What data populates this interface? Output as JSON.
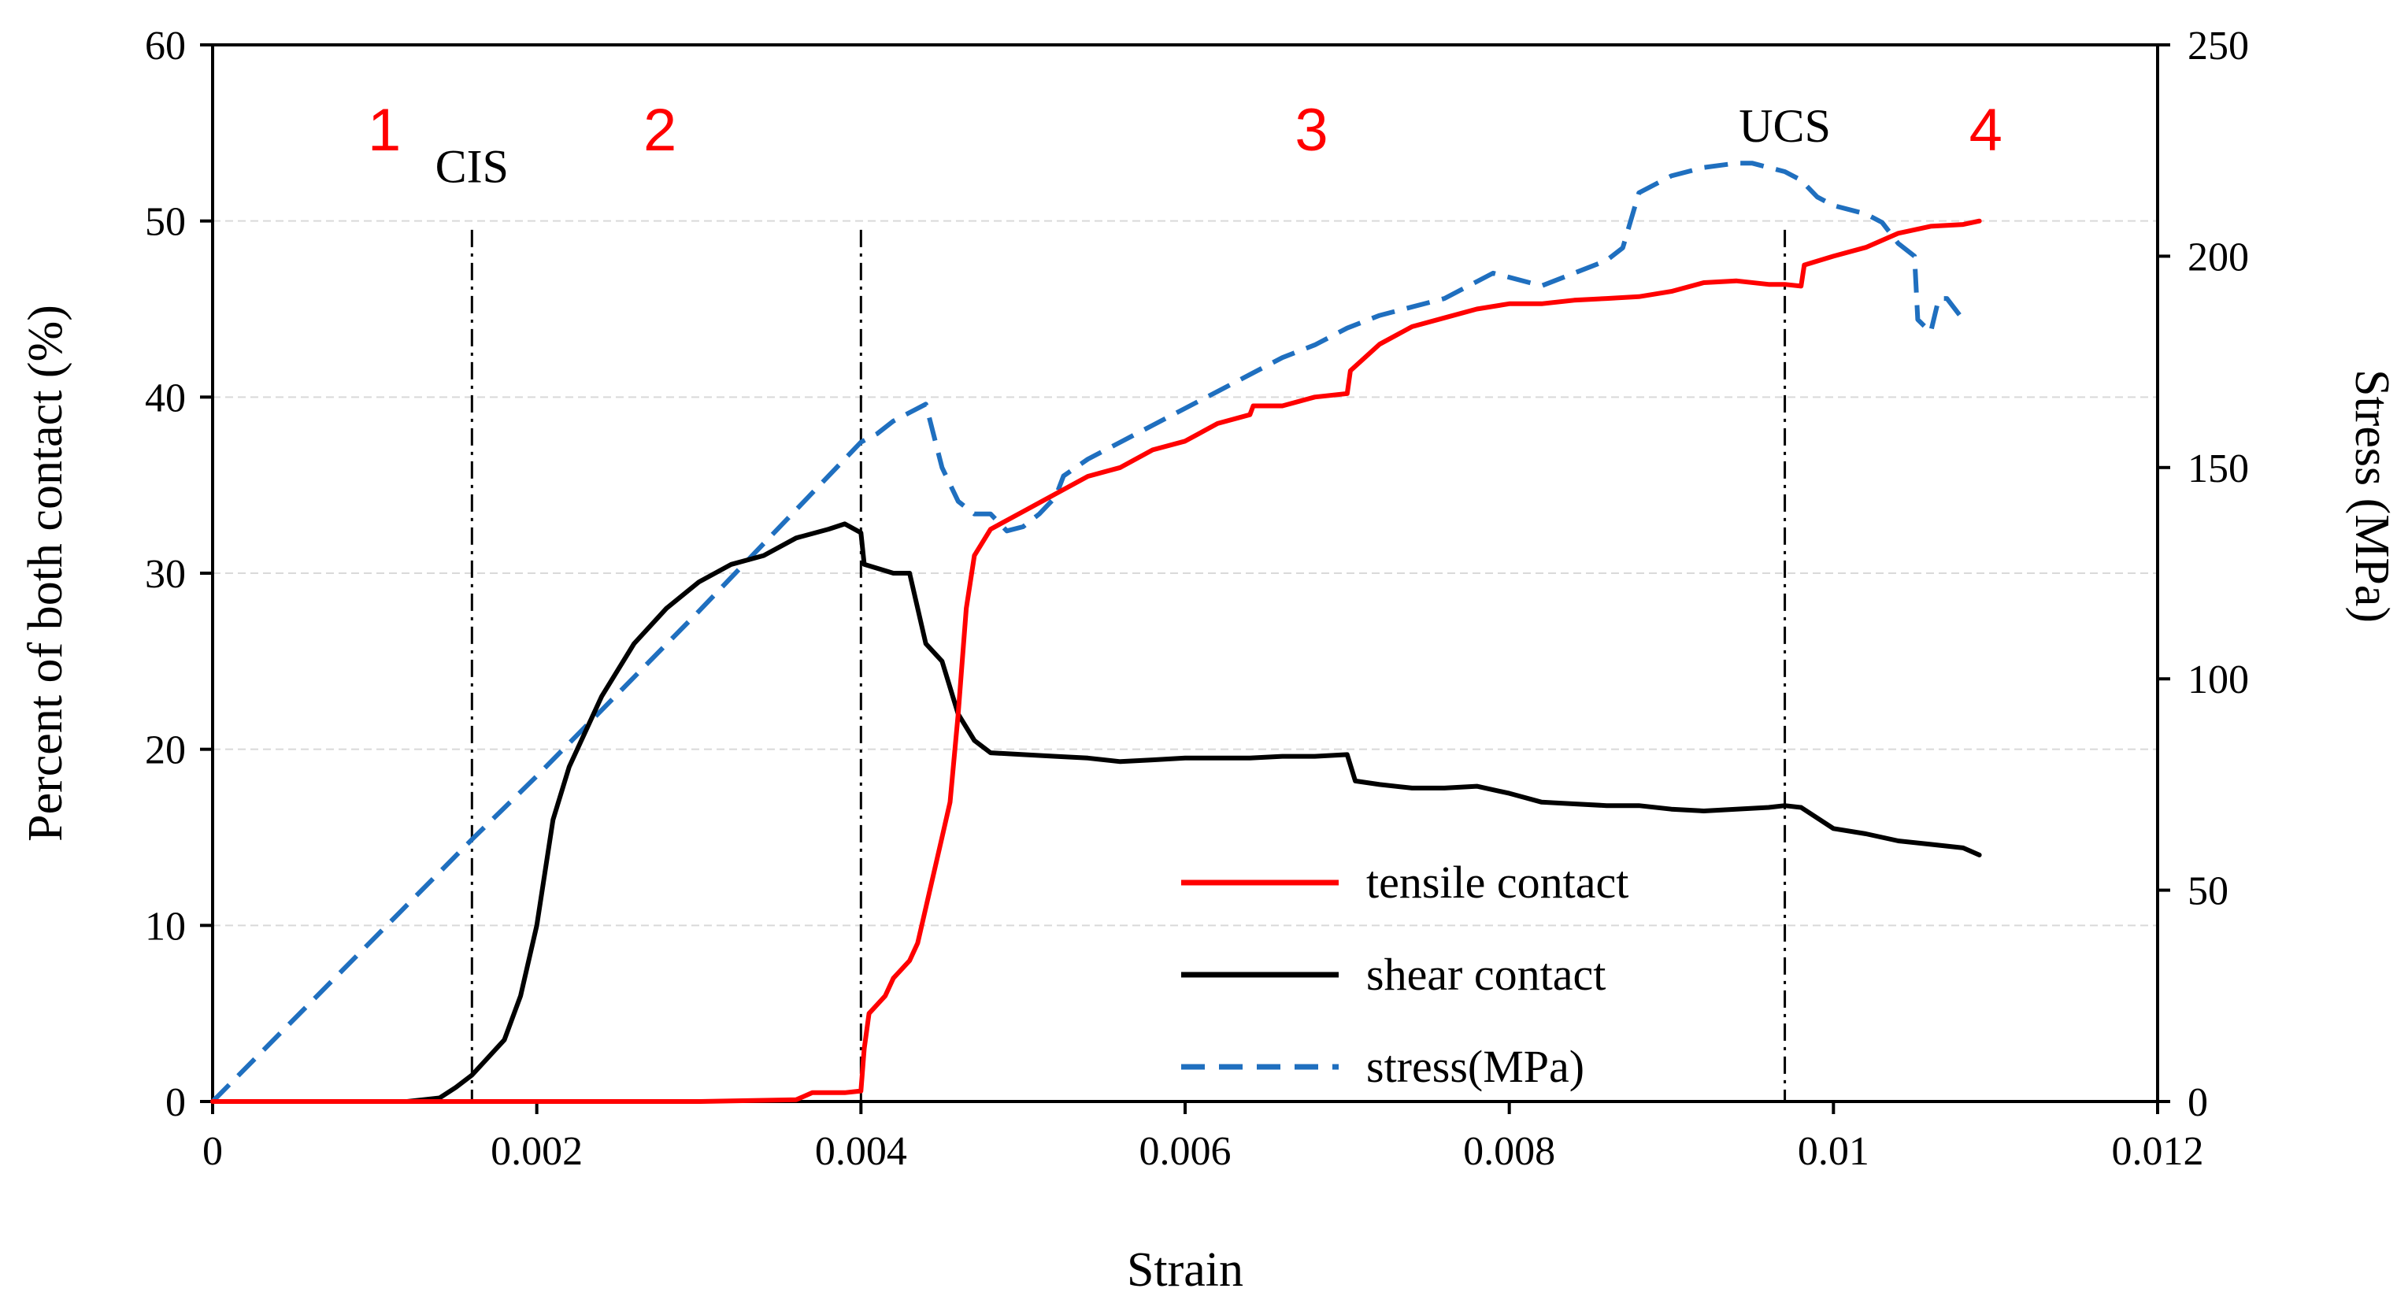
{
  "colors": {
    "tensile": "#ff0000",
    "shear": "#000000",
    "stress": "#1f6fbf",
    "stage": "#ff0000",
    "grid": "#d9d9d9"
  },
  "chart_data": {
    "type": "line",
    "xlabel": "Strain",
    "ylabel_left": "Percent of both contact (%)",
    "ylabel_right": "Stress (MPa)",
    "xlim": [
      0,
      0.012
    ],
    "ylim_left": [
      0,
      60
    ],
    "ylim_right": [
      0,
      250
    ],
    "x_ticks": [
      0,
      0.002,
      0.004,
      0.006,
      0.008,
      0.01,
      0.012
    ],
    "x_tick_labels": [
      "0",
      "0.002",
      "0.004",
      "0.006",
      "0.008",
      "0.01",
      "0.012"
    ],
    "y_left_ticks": [
      0,
      10,
      20,
      30,
      40,
      50,
      60
    ],
    "y_left_tick_labels": [
      "0",
      "10",
      "20",
      "30",
      "40",
      "50",
      "60"
    ],
    "y_right_ticks": [
      0,
      50,
      100,
      150,
      200,
      250
    ],
    "y_right_tick_labels": [
      "0",
      "50",
      "100",
      "150",
      "200",
      "250"
    ],
    "grid": "horizontal",
    "legend_position": "bottom-center",
    "series": [
      {
        "name": "tensile contact",
        "axis": "left",
        "style": "solid",
        "x": [
          0,
          0.001,
          0.002,
          0.003,
          0.0036,
          0.0037,
          0.0039,
          0.004,
          0.00402,
          0.00405,
          0.0041,
          0.00415,
          0.0042,
          0.0043,
          0.00435,
          0.0044,
          0.0045,
          0.00455,
          0.0046,
          0.00465,
          0.0047,
          0.0048,
          0.005,
          0.0052,
          0.0054,
          0.0056,
          0.0058,
          0.006,
          0.0062,
          0.0064,
          0.00642,
          0.0066,
          0.0068,
          0.007,
          0.00702,
          0.0072,
          0.0074,
          0.0076,
          0.0078,
          0.008,
          0.0082,
          0.0084,
          0.0086,
          0.0088,
          0.009,
          0.0092,
          0.0094,
          0.0096,
          0.0097,
          0.0098,
          0.00982,
          0.01,
          0.0102,
          0.0104,
          0.0106,
          0.0108,
          0.0109
        ],
        "values": [
          0,
          0,
          0,
          0,
          0.1,
          0.5,
          0.5,
          0.6,
          3,
          5,
          5.5,
          6,
          7,
          8,
          9,
          11,
          15,
          17,
          22,
          28,
          31,
          32.5,
          33.5,
          34.5,
          35.5,
          36,
          37,
          37.5,
          38.5,
          39,
          39.5,
          39.5,
          40,
          40.2,
          41.5,
          43,
          44,
          44.5,
          45,
          45.3,
          45.3,
          45.5,
          45.6,
          45.7,
          46,
          46.5,
          46.6,
          46.4,
          46.4,
          46.3,
          47.5,
          48,
          48.5,
          49.3,
          49.7,
          49.8,
          50
        ]
      },
      {
        "name": "shear contact",
        "axis": "left",
        "style": "solid",
        "x": [
          0,
          0.0012,
          0.0014,
          0.0015,
          0.0016,
          0.0017,
          0.0018,
          0.0019,
          0.002,
          0.00205,
          0.0021,
          0.0022,
          0.0024,
          0.0026,
          0.0028,
          0.003,
          0.0032,
          0.0034,
          0.0036,
          0.0038,
          0.0039,
          0.004,
          0.00402,
          0.0042,
          0.0043,
          0.0044,
          0.0045,
          0.0046,
          0.0047,
          0.0048,
          0.005,
          0.0052,
          0.0054,
          0.0056,
          0.0058,
          0.006,
          0.0062,
          0.0064,
          0.0066,
          0.0068,
          0.007,
          0.00705,
          0.0072,
          0.0074,
          0.0076,
          0.0078,
          0.008,
          0.0082,
          0.0084,
          0.0086,
          0.0088,
          0.009,
          0.0092,
          0.0094,
          0.0096,
          0.0097,
          0.0098,
          0.01,
          0.0102,
          0.0104,
          0.0106,
          0.0108,
          0.0109
        ],
        "values": [
          0,
          0,
          0.2,
          0.8,
          1.5,
          2.5,
          3.5,
          6,
          10,
          13,
          16,
          19,
          23,
          26,
          28,
          29.5,
          30.5,
          31,
          32,
          32.5,
          32.8,
          32.3,
          30.5,
          30,
          30,
          26,
          25,
          22,
          20.5,
          19.8,
          19.7,
          19.6,
          19.5,
          19.3,
          19.4,
          19.5,
          19.5,
          19.5,
          19.6,
          19.6,
          19.7,
          18.2,
          18,
          17.8,
          17.8,
          17.9,
          17.5,
          17,
          16.9,
          16.8,
          16.8,
          16.6,
          16.5,
          16.6,
          16.7,
          16.8,
          16.7,
          15.5,
          15.2,
          14.8,
          14.6,
          14.4,
          14
        ]
      },
      {
        "name": "stress(MPa)",
        "axis": "right",
        "style": "dashed",
        "x": [
          0,
          0.0016,
          0.002,
          0.003,
          0.004,
          0.0041,
          0.0042,
          0.0043,
          0.0044,
          0.0045,
          0.0046,
          0.0047,
          0.0048,
          0.0049,
          0.005,
          0.0051,
          0.00515,
          0.0052,
          0.00525,
          0.0054,
          0.0056,
          0.0058,
          0.006,
          0.0062,
          0.0064,
          0.0066,
          0.0068,
          0.007,
          0.0072,
          0.0074,
          0.0076,
          0.0078,
          0.0079,
          0.008,
          0.0082,
          0.0084,
          0.0086,
          0.0087,
          0.0088,
          0.00885,
          0.009,
          0.0092,
          0.0094,
          0.0095,
          0.0096,
          0.0097,
          0.0098,
          0.0099,
          0.01,
          0.0102,
          0.0103,
          0.0104,
          0.0105,
          0.01052,
          0.0106,
          0.01065,
          0.0107,
          0.0108
        ],
        "values": [
          0,
          62,
          77,
          116,
          156,
          158,
          161,
          163,
          165,
          150,
          142,
          139,
          139,
          135,
          136,
          139,
          141,
          143,
          148,
          152,
          156,
          160,
          164,
          168,
          172,
          176,
          179,
          183,
          186,
          188,
          190,
          194,
          196,
          195,
          193,
          196,
          199,
          202,
          215,
          216,
          219,
          221,
          222,
          222,
          221,
          220,
          218,
          214,
          212,
          210,
          208,
          203,
          200,
          185,
          182,
          190,
          190,
          185
        ]
      }
    ],
    "markers": [
      {
        "label": "CIS",
        "x": 0.0016
      },
      {
        "label": "",
        "x": 0.004
      },
      {
        "label": "UCS",
        "x": 0.0097
      }
    ],
    "stage_labels": [
      {
        "label": "1",
        "x": 0.00106,
        "y": 54
      },
      {
        "label": "2",
        "x": 0.00276,
        "y": 54
      },
      {
        "label": "3",
        "x": 0.00678,
        "y": 54
      },
      {
        "label": "4",
        "x": 0.01094,
        "y": 54
      }
    ]
  }
}
